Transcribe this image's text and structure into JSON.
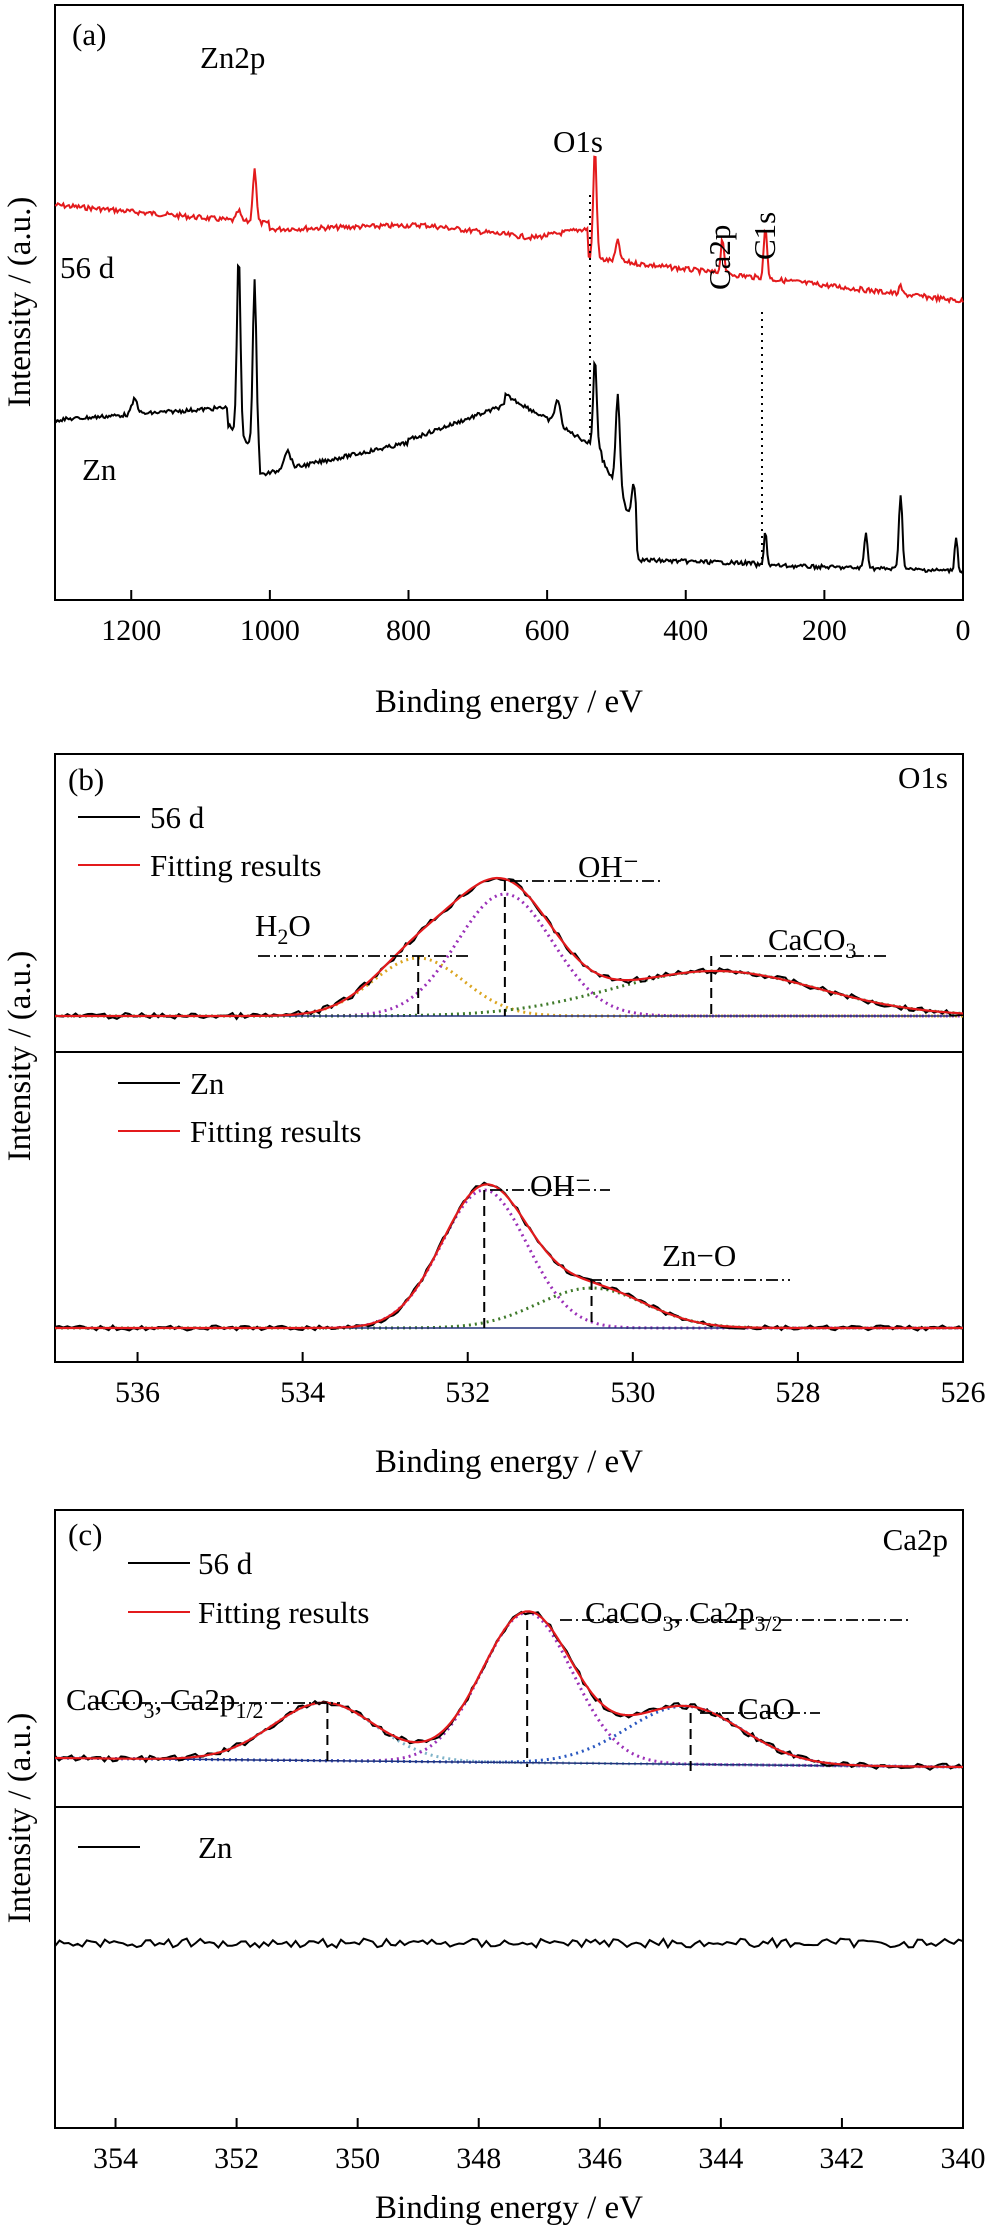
{
  "colors": {
    "sample": "#e31a1c",
    "zn": "#000000",
    "fit": "#e31a1c",
    "h2o": "#dba520",
    "oh": "#9b30b8",
    "caco3": "#3f7a2a",
    "zno": "#3f7a2a",
    "ca12": "#7fb3c8",
    "ca32": "#9b30b8",
    "cao": "#2a58c0",
    "base": "#22307a"
  },
  "ylabel": "Intensity / (a.u.)",
  "xlabel": "Binding energy / eV",
  "panels": [
    {
      "tag": "(a)",
      "xticks": [
        "1200",
        "1000",
        "800",
        "600",
        "400",
        "200",
        "0"
      ]
    },
    {
      "tag": "(b)",
      "xticks": [
        "536",
        "534",
        "532",
        "530",
        "528",
        "526"
      ],
      "corner": "O1s"
    },
    {
      "tag": "(c)",
      "xticks": [
        "354",
        "352",
        "350",
        "348",
        "346",
        "344",
        "342",
        "340"
      ],
      "corner": "Ca2p"
    }
  ],
  "labels_a": {
    "sample": "56 d",
    "zn": "Zn",
    "zn2p": "Zn2p",
    "o1s": "O1s",
    "ca2p": "Ca2p",
    "c1s": "C1s"
  },
  "legend_b": {
    "sample": "56 d",
    "zn": "Zn",
    "fit": "Fitting results"
  },
  "legend_c": {
    "sample": "56 d",
    "zn": "Zn",
    "fit": "Fitting results"
  },
  "labels_b": {
    "h2o_main": "H",
    "h2o_sub": "2",
    "h2o_tail": "O",
    "oh": "OH⁻",
    "caco3_main": "CaCO",
    "caco3_sub": "3",
    "oh2": "OH⁻",
    "zno": "Zn−O"
  },
  "labels_c": {
    "caco3a": "CaCO",
    "sub3": "3",
    "comma": ", Ca2p",
    "half": "1/2",
    "threehalf": "3/2",
    "cao": "CaO"
  },
  "chart_data": [
    {
      "type": "line",
      "title": "(a)",
      "xlabel": "Binding energy / eV",
      "ylabel": "Intensity / (a.u.)",
      "xlim": [
        1310,
        0
      ],
      "series": [
        {
          "name": "56 d",
          "peaks_eV": [
            1045,
            1022,
            531,
            347,
            285
          ]
        },
        {
          "name": "Zn",
          "peaks_eV": [
            1195,
            1045,
            1022,
            975,
            585,
            531,
            498,
            475,
            285,
            140,
            90,
            10
          ]
        }
      ],
      "annotations": [
        "Zn2p",
        "O1s",
        "Ca2p",
        "C1s"
      ]
    },
    {
      "type": "line",
      "title": "(b) O1s",
      "xlabel": "Binding energy / eV",
      "ylabel": "Intensity / (a.u.)",
      "xlim": [
        537,
        526
      ],
      "xticks": [
        536,
        534,
        532,
        530,
        528,
        526
      ],
      "series": [
        {
          "name": "56 d",
          "components": [
            {
              "label": "H2O",
              "center": 532.6,
              "height": 0.3
            },
            {
              "label": "OH⁻",
              "center": 531.5,
              "height": 0.72
            },
            {
              "label": "CaCO3",
              "center": 529.0,
              "height": 0.3
            }
          ]
        },
        {
          "name": "Zn",
          "components": [
            {
              "label": "OH⁻",
              "center": 531.8,
              "height": 0.9
            },
            {
              "label": "Zn−O",
              "center": 530.5,
              "height": 0.25
            }
          ]
        }
      ]
    },
    {
      "type": "line",
      "title": "(c) Ca2p",
      "xlabel": "Binding energy / eV",
      "ylabel": "Intensity / (a.u.)",
      "xlim": [
        355,
        340
      ],
      "xticks": [
        354,
        352,
        350,
        348,
        346,
        344,
        342,
        340
      ],
      "series": [
        {
          "name": "56 d",
          "components": [
            {
              "label": "CaCO3, Ca2p1/2",
              "center": 350.5,
              "height": 0.33
            },
            {
              "label": "CaCO3, Ca2p3/2",
              "center": 347.2,
              "height": 0.88
            },
            {
              "label": "CaO",
              "center": 344.5,
              "height": 0.33
            }
          ]
        },
        {
          "name": "Zn",
          "note": "flat, no peaks"
        }
      ]
    }
  ]
}
